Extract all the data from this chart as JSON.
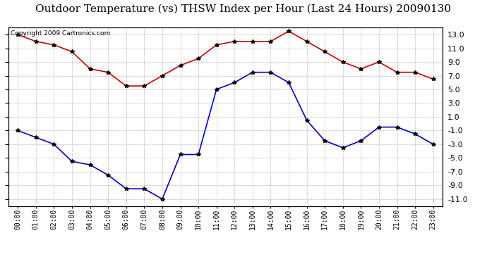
{
  "title": "Outdoor Temperature (vs) THSW Index per Hour (Last 24 Hours) 20090130",
  "copyright": "Copyright 2009 Cartronics.com",
  "hours": [
    0,
    1,
    2,
    3,
    4,
    5,
    6,
    7,
    8,
    9,
    10,
    11,
    12,
    13,
    14,
    15,
    16,
    17,
    18,
    19,
    20,
    21,
    22,
    23
  ],
  "hour_labels": [
    "00:00",
    "01:00",
    "02:00",
    "03:00",
    "04:00",
    "05:00",
    "06:00",
    "07:00",
    "08:00",
    "09:00",
    "10:00",
    "11:00",
    "12:00",
    "13:00",
    "14:00",
    "15:00",
    "16:00",
    "17:00",
    "18:00",
    "19:00",
    "20:00",
    "21:00",
    "22:00",
    "23:00"
  ],
  "red_data": [
    13.0,
    12.0,
    11.5,
    10.5,
    8.0,
    7.5,
    5.5,
    5.5,
    7.0,
    8.5,
    9.5,
    11.5,
    12.0,
    12.0,
    12.0,
    13.5,
    12.0,
    10.5,
    9.0,
    8.0,
    9.0,
    7.5,
    7.5,
    6.5
  ],
  "blue_data": [
    -1.0,
    -2.0,
    -3.0,
    -5.5,
    -6.0,
    -7.5,
    -9.5,
    -9.5,
    -11.0,
    -4.5,
    -4.5,
    5.0,
    6.0,
    7.5,
    7.5,
    6.0,
    0.5,
    -2.5,
    -3.5,
    -2.5,
    -0.5,
    -0.5,
    -1.5,
    -3.0
  ],
  "red_color": "#cc0000",
  "blue_color": "#0000cc",
  "marker": "*",
  "marker_size": 4,
  "marker_color": "#000000",
  "ylim": [
    -12.0,
    14.0
  ],
  "yticks": [
    -11.0,
    -9.0,
    -7.0,
    -5.0,
    -3.0,
    -1.0,
    1.0,
    3.0,
    5.0,
    7.0,
    9.0,
    11.0,
    13.0
  ],
  "background_color": "#ffffff",
  "grid_color": "#aaaaaa",
  "title_fontsize": 11,
  "copyright_fontsize": 6.5,
  "tick_fontsize": 8,
  "xlabel_fontsize": 7
}
